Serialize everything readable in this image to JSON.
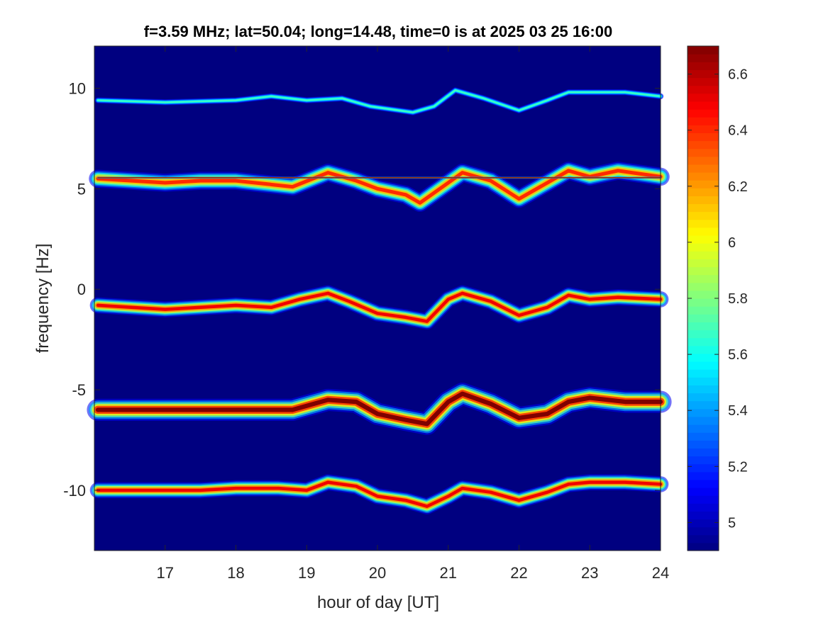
{
  "chart_data": {
    "type": "heatmap",
    "title": "f=3.59 MHz;  lat=50.04; long=14.48, time=0 is at 2025 03 25 16:00",
    "xlabel": "hour of day [UT]",
    "ylabel": "frequency [Hz]",
    "xlim": [
      16,
      24
    ],
    "ylim": [
      -13,
      12.1
    ],
    "xticks": [
      17,
      18,
      19,
      20,
      21,
      22,
      23,
      24
    ],
    "xtick_labels": [
      "17",
      "18",
      "19",
      "20",
      "21",
      "22",
      "23",
      "24"
    ],
    "yticks": [
      10,
      5,
      0,
      -5,
      -10
    ],
    "ytick_labels": [
      "10",
      "5",
      "0",
      "-5",
      "-10"
    ],
    "colormap": "jet",
    "colorbar": {
      "range": [
        4.9,
        6.7
      ],
      "ticks": [
        6.6,
        6.4,
        6.2,
        6.0,
        5.8,
        5.6,
        5.4,
        5.2,
        5.0
      ],
      "tick_labels": [
        "6.6",
        "6.4",
        "6.2",
        "6",
        "5.8",
        "5.6",
        "5.4",
        "5.2",
        "5"
      ]
    },
    "background_value": 4.9,
    "traces": [
      {
        "baseline_hz": 9.4,
        "peak_value": 5.7,
        "spread_hz": 0.15,
        "points": [
          [
            16.05,
            9.4
          ],
          [
            17,
            9.3
          ],
          [
            18,
            9.4
          ],
          [
            18.5,
            9.6
          ],
          [
            19,
            9.4
          ],
          [
            19.5,
            9.5
          ],
          [
            19.9,
            9.1
          ],
          [
            20.5,
            8.8
          ],
          [
            20.8,
            9.1
          ],
          [
            21.1,
            9.9
          ],
          [
            21.5,
            9.5
          ],
          [
            22,
            8.9
          ],
          [
            22.4,
            9.4
          ],
          [
            22.7,
            9.8
          ],
          [
            23,
            9.8
          ],
          [
            23.5,
            9.8
          ],
          [
            24,
            9.6
          ]
        ]
      },
      {
        "baseline_hz": 5.5,
        "peak_value": 6.4,
        "spread_hz": 0.45,
        "points": [
          [
            16.05,
            5.5
          ],
          [
            17,
            5.3
          ],
          [
            17.5,
            5.4
          ],
          [
            18,
            5.4
          ],
          [
            18.8,
            5.1
          ],
          [
            19.3,
            5.8
          ],
          [
            19.7,
            5.4
          ],
          [
            20,
            5.0
          ],
          [
            20.4,
            4.7
          ],
          [
            20.6,
            4.3
          ],
          [
            21,
            5.3
          ],
          [
            21.2,
            5.8
          ],
          [
            21.6,
            5.4
          ],
          [
            22,
            4.5
          ],
          [
            22.3,
            5.1
          ],
          [
            22.7,
            5.9
          ],
          [
            23,
            5.6
          ],
          [
            23.4,
            5.9
          ],
          [
            24,
            5.6
          ]
        ]
      },
      {
        "baseline_hz": 5.55,
        "peak_value": 6.7,
        "spread_hz": 0.05,
        "points": [
          [
            16.05,
            5.55
          ],
          [
            24,
            5.55
          ]
        ]
      },
      {
        "baseline_hz": -0.9,
        "peak_value": 6.5,
        "spread_hz": 0.4,
        "points": [
          [
            16.05,
            -0.8
          ],
          [
            17,
            -1.0
          ],
          [
            17.5,
            -0.9
          ],
          [
            18,
            -0.8
          ],
          [
            18.5,
            -0.9
          ],
          [
            18.9,
            -0.5
          ],
          [
            19.3,
            -0.2
          ],
          [
            19.6,
            -0.6
          ],
          [
            20,
            -1.2
          ],
          [
            20.4,
            -1.4
          ],
          [
            20.7,
            -1.6
          ],
          [
            21,
            -0.5
          ],
          [
            21.2,
            -0.2
          ],
          [
            21.6,
            -0.6
          ],
          [
            22,
            -1.3
          ],
          [
            22.4,
            -0.9
          ],
          [
            22.7,
            -0.3
          ],
          [
            23,
            -0.5
          ],
          [
            23.4,
            -0.4
          ],
          [
            24,
            -0.5
          ]
        ]
      },
      {
        "baseline_hz": -6.0,
        "peak_value": 6.7,
        "spread_hz": 0.55,
        "points": [
          [
            16.05,
            -6.0
          ],
          [
            17,
            -6.0
          ],
          [
            17.5,
            -6.0
          ],
          [
            18,
            -6.0
          ],
          [
            18.8,
            -6.0
          ],
          [
            19.3,
            -5.5
          ],
          [
            19.7,
            -5.6
          ],
          [
            20,
            -6.2
          ],
          [
            20.4,
            -6.5
          ],
          [
            20.7,
            -6.7
          ],
          [
            21,
            -5.6
          ],
          [
            21.2,
            -5.2
          ],
          [
            21.6,
            -5.7
          ],
          [
            22,
            -6.4
          ],
          [
            22.4,
            -6.2
          ],
          [
            22.7,
            -5.6
          ],
          [
            23,
            -5.4
          ],
          [
            23.5,
            -5.6
          ],
          [
            24,
            -5.6
          ]
        ]
      },
      {
        "baseline_hz": -10.0,
        "peak_value": 6.5,
        "spread_hz": 0.4,
        "points": [
          [
            16.05,
            -10.0
          ],
          [
            17,
            -10.0
          ],
          [
            17.5,
            -10.0
          ],
          [
            18,
            -9.9
          ],
          [
            18.6,
            -9.9
          ],
          [
            19,
            -10.0
          ],
          [
            19.3,
            -9.6
          ],
          [
            19.7,
            -9.8
          ],
          [
            20,
            -10.3
          ],
          [
            20.4,
            -10.5
          ],
          [
            20.7,
            -10.8
          ],
          [
            21,
            -10.3
          ],
          [
            21.2,
            -9.9
          ],
          [
            21.6,
            -10.1
          ],
          [
            22,
            -10.5
          ],
          [
            22.4,
            -10.1
          ],
          [
            22.7,
            -9.7
          ],
          [
            23,
            -9.6
          ],
          [
            23.5,
            -9.6
          ],
          [
            24,
            -9.7
          ]
        ]
      }
    ]
  }
}
